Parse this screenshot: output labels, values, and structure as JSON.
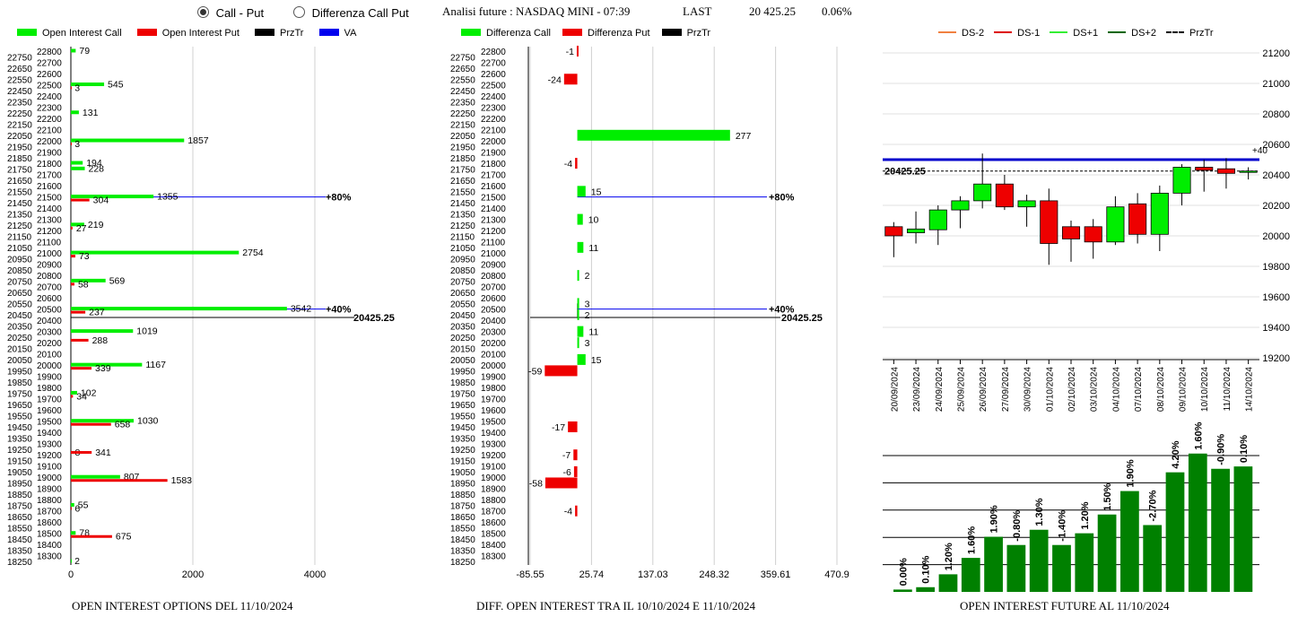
{
  "header": {
    "options": [
      {
        "label": "Call - Put",
        "selected": true
      },
      {
        "label": "Differenza Call Put",
        "selected": false
      }
    ],
    "title": "Analisi future : NASDAQ MINI - 07:39",
    "last_label": "LAST",
    "last_value": "20 425.25",
    "change": "0.06%"
  },
  "panel1": {
    "legend": [
      {
        "label": "Open Interest Call",
        "color": "#00ee00"
      },
      {
        "label": "Open Interest Put",
        "color": "#ee0000"
      },
      {
        "label": "PrzTr",
        "color": "#000000"
      },
      {
        "label": "VA",
        "color": "#0000ee"
      }
    ],
    "footer": "OPEN INTEREST OPTIONS DEL 11/10/2024"
  },
  "panel2": {
    "legend": [
      {
        "label": "Differenza Call",
        "color": "#00ee00"
      },
      {
        "label": "Differenza Put",
        "color": "#ee0000"
      },
      {
        "label": "PrzTr",
        "color": "#000000"
      }
    ],
    "footer": "DIFF. OPEN INTEREST TRA IL 10/10/2024 E 11/10/2024"
  },
  "panel3": {
    "legend": [
      {
        "label": "DS-2",
        "color": "#f08040"
      },
      {
        "label": "DS-1",
        "color": "#dd0000"
      },
      {
        "label": "DS+1",
        "color": "#33ee33"
      },
      {
        "label": "DS+2",
        "color": "#006600"
      },
      {
        "label": "PrzTr",
        "color": "#000000"
      }
    ],
    "footer": "OPEN INTEREST FUTURE AL 11/10/2024"
  },
  "chart_data": [
    {
      "type": "bar",
      "orientation": "horizontal",
      "strikes": [
        22800,
        22750,
        22700,
        22650,
        22600,
        22550,
        22500,
        22450,
        22400,
        22350,
        22300,
        22250,
        22200,
        22150,
        22100,
        22050,
        22000,
        21950,
        21900,
        21850,
        21800,
        21750,
        21700,
        21650,
        21600,
        21550,
        21500,
        21450,
        21400,
        21350,
        21300,
        21250,
        21200,
        21150,
        21100,
        21050,
        21000,
        20950,
        20900,
        20850,
        20800,
        20750,
        20700,
        20650,
        20600,
        20550,
        20500,
        20450,
        20400,
        20350,
        20300,
        20250,
        20200,
        20150,
        20100,
        20050,
        20000,
        19950,
        19900,
        19850,
        19800,
        19750,
        19700,
        19650,
        19600,
        19550,
        19500,
        19450,
        19400,
        19350,
        19300,
        19250,
        19200,
        19150,
        19100,
        19050,
        19000,
        18950,
        18900,
        18850,
        18800,
        18750,
        18700,
        18650,
        18600,
        18550,
        18500,
        18450,
        18400,
        18350,
        18300,
        18250
      ],
      "xlim": [
        0,
        4300
      ],
      "xticks": [
        "0",
        "2000",
        "4000"
      ],
      "calls": [
        {
          "strike": 22800,
          "value": 79
        },
        {
          "strike": 22500,
          "value": 545
        },
        {
          "strike": 22250,
          "value": 131
        },
        {
          "strike": 22000,
          "value": 1857
        },
        {
          "strike": 21800,
          "value": 194
        },
        {
          "strike": 21750,
          "value": 228
        },
        {
          "strike": 21500,
          "value": 1355
        },
        {
          "strike": 21250,
          "value": 219
        },
        {
          "strike": 21000,
          "value": 2754
        },
        {
          "strike": 20750,
          "value": 569
        },
        {
          "strike": 20500,
          "value": 3542
        },
        {
          "strike": 20300,
          "value": 1019
        },
        {
          "strike": 20000,
          "value": 1167
        },
        {
          "strike": 19750,
          "value": 102
        },
        {
          "strike": 19500,
          "value": 1030
        },
        {
          "strike": 19000,
          "value": 807
        },
        {
          "strike": 18750,
          "value": 55
        },
        {
          "strike": 18500,
          "value": 78
        },
        {
          "strike": 18250,
          "value": 2
        }
      ],
      "puts": [
        {
          "strike": 22500,
          "value": 3
        },
        {
          "strike": 22000,
          "value": 3
        },
        {
          "strike": 21500,
          "value": 304
        },
        {
          "strike": 21250,
          "value": 27
        },
        {
          "strike": 21000,
          "value": 73
        },
        {
          "strike": 20750,
          "value": 58
        },
        {
          "strike": 20500,
          "value": 237
        },
        {
          "strike": 20250,
          "value": 288
        },
        {
          "strike": 20000,
          "value": 339
        },
        {
          "strike": 19750,
          "value": 34
        },
        {
          "strike": 19500,
          "value": 658
        },
        {
          "strike": 19250,
          "value": 8
        },
        {
          "strike": 19250,
          "value": 341
        },
        {
          "strike": 19000,
          "value": 1583
        },
        {
          "strike": 18750,
          "value": 6
        },
        {
          "strike": 18500,
          "value": 675
        }
      ],
      "va_lines": [
        {
          "strike": 21500,
          "label": "+80%"
        },
        {
          "strike": 20500,
          "label": "+40%"
        }
      ],
      "przTr": {
        "value": 20425.25,
        "label": "20425.25"
      }
    },
    {
      "type": "bar",
      "orientation": "horizontal",
      "strikes": [
        22800,
        22750,
        22700,
        22650,
        22600,
        22550,
        22500,
        22450,
        22400,
        22350,
        22300,
        22250,
        22200,
        22150,
        22100,
        22050,
        22000,
        21950,
        21900,
        21850,
        21800,
        21750,
        21700,
        21650,
        21600,
        21550,
        21500,
        21450,
        21400,
        21350,
        21300,
        21250,
        21200,
        21150,
        21100,
        21050,
        21000,
        20950,
        20900,
        20850,
        20800,
        20750,
        20700,
        20650,
        20600,
        20550,
        20500,
        20450,
        20400,
        20350,
        20300,
        20250,
        20200,
        20150,
        20100,
        20050,
        20000,
        19950,
        19900,
        19850,
        19800,
        19750,
        19700,
        19650,
        19600,
        19550,
        19500,
        19450,
        19400,
        19350,
        19300,
        19250,
        19200,
        19150,
        19100,
        19050,
        19000,
        18950,
        18900,
        18850,
        18800,
        18750,
        18700,
        18650,
        18600,
        18550,
        18500,
        18450,
        18400,
        18350,
        18300,
        18250
      ],
      "xlim": [
        -85.55,
        470.9
      ],
      "xticks": [
        "-85.55",
        "25.74",
        "137.03",
        "248.32",
        "359.61",
        "470.9"
      ],
      "items": [
        {
          "strike": 22800,
          "value": -1,
          "label": "-1"
        },
        {
          "strike": 22550,
          "value": -24,
          "label": "-24"
        },
        {
          "strike": 22050,
          "value": 277,
          "label": "277"
        },
        {
          "strike": 21800,
          "value": -4,
          "label": "-4"
        },
        {
          "strike": 21550,
          "value": 15,
          "label": "15"
        },
        {
          "strike": 21300,
          "value": 10,
          "label": "10"
        },
        {
          "strike": 21050,
          "value": 11,
          "label": "11"
        },
        {
          "strike": 20800,
          "value": 2,
          "label": "2"
        },
        {
          "strike": 20550,
          "value": 3,
          "label": "3"
        },
        {
          "strike": 20450,
          "value": 2,
          "label": "2"
        },
        {
          "strike": 20300,
          "value": 11,
          "label": "11"
        },
        {
          "strike": 20200,
          "value": 3,
          "label": "3"
        },
        {
          "strike": 20050,
          "value": 15,
          "label": "15"
        },
        {
          "strike": 19950,
          "value": -59,
          "label": "-59"
        },
        {
          "strike": 19450,
          "value": -17,
          "label": "-17"
        },
        {
          "strike": 19200,
          "value": -7,
          "label": "-7"
        },
        {
          "strike": 19050,
          "value": -6,
          "label": "-6"
        },
        {
          "strike": 18950,
          "value": -58,
          "label": "-58"
        },
        {
          "strike": 18700,
          "value": -4,
          "label": "-4"
        }
      ],
      "va_lines": [
        {
          "strike": 21500,
          "label": "+80%"
        },
        {
          "strike": 20500,
          "label": "+40%"
        }
      ],
      "przTr": {
        "value": 20425.25,
        "label": "20425.25"
      }
    },
    {
      "type": "candlestick",
      "dates": [
        "20/09/2024",
        "23/09/2024",
        "24/09/2024",
        "25/09/2024",
        "26/09/2024",
        "27/09/2024",
        "30/09/2024",
        "01/10/2024",
        "02/10/2024",
        "03/10/2024",
        "04/10/2024",
        "07/10/2024",
        "08/10/2024",
        "09/10/2024",
        "10/10/2024",
        "11/10/2024",
        "14/10/2024"
      ],
      "candles": [
        {
          "open": 20060,
          "high": 20090,
          "low": 19860,
          "close": 20000
        },
        {
          "open": 20020,
          "high": 20160,
          "low": 19950,
          "close": 20045
        },
        {
          "open": 20040,
          "high": 20200,
          "low": 19940,
          "close": 20170
        },
        {
          "open": 20170,
          "high": 20260,
          "low": 20050,
          "close": 20230
        },
        {
          "open": 20230,
          "high": 20540,
          "low": 20180,
          "close": 20340
        },
        {
          "open": 20340,
          "high": 20400,
          "low": 20170,
          "close": 20190
        },
        {
          "open": 20190,
          "high": 20270,
          "low": 20060,
          "close": 20230
        },
        {
          "open": 20230,
          "high": 20310,
          "low": 19810,
          "close": 19950
        },
        {
          "open": 20060,
          "high": 20100,
          "low": 19830,
          "close": 19980
        },
        {
          "open": 20060,
          "high": 20110,
          "low": 19850,
          "close": 19960
        },
        {
          "open": 19960,
          "high": 20260,
          "low": 19940,
          "close": 20190
        },
        {
          "open": 20210,
          "high": 20280,
          "low": 19950,
          "close": 20010
        },
        {
          "open": 20010,
          "high": 20330,
          "low": 19900,
          "close": 20280
        },
        {
          "open": 20280,
          "high": 20470,
          "low": 20200,
          "close": 20450
        },
        {
          "open": 20450,
          "high": 20500,
          "low": 20290,
          "close": 20430
        },
        {
          "open": 20440,
          "high": 20510,
          "low": 20310,
          "close": 20410
        },
        {
          "open": 20425,
          "high": 20450,
          "low": 20370,
          "close": 20425
        }
      ],
      "ylim": [
        19200,
        21200
      ],
      "yticks": [
        "21200",
        "21000",
        "20800",
        "20600",
        "20400",
        "20200",
        "20000",
        "19800",
        "19600",
        "19400",
        "19200"
      ],
      "va_line": 20500,
      "va_label": "+40",
      "przTr": {
        "value": 20425.25,
        "label": "20425.25"
      }
    },
    {
      "type": "bar",
      "categories": [
        "20/09/2024",
        "23/09/2024",
        "24/09/2024",
        "25/09/2024",
        "26/09/2024",
        "27/09/2024",
        "30/09/2024",
        "01/10/2024",
        "02/10/2024",
        "03/10/2024",
        "04/10/2024",
        "07/10/2024",
        "08/10/2024",
        "09/10/2024",
        "10/10/2024",
        "11/10/2024"
      ],
      "relative_heights": [
        0.02,
        0.04,
        0.15,
        0.29,
        0.47,
        0.4,
        0.53,
        0.4,
        0.5,
        0.66,
        0.86,
        0.57,
        1.02,
        1.18,
        1.05,
        1.07
      ],
      "labels": [
        "0.00%",
        "0.10%",
        "1.20%",
        "1.60%",
        "1.90%",
        "-0.80%",
        "1.30%",
        "-1.40%",
        "1.20%",
        "1.50%",
        "1.90%",
        "-2.70%",
        "4.20%",
        "1.60%",
        "-0.90%",
        "0.10%"
      ],
      "color": "#008000"
    }
  ]
}
